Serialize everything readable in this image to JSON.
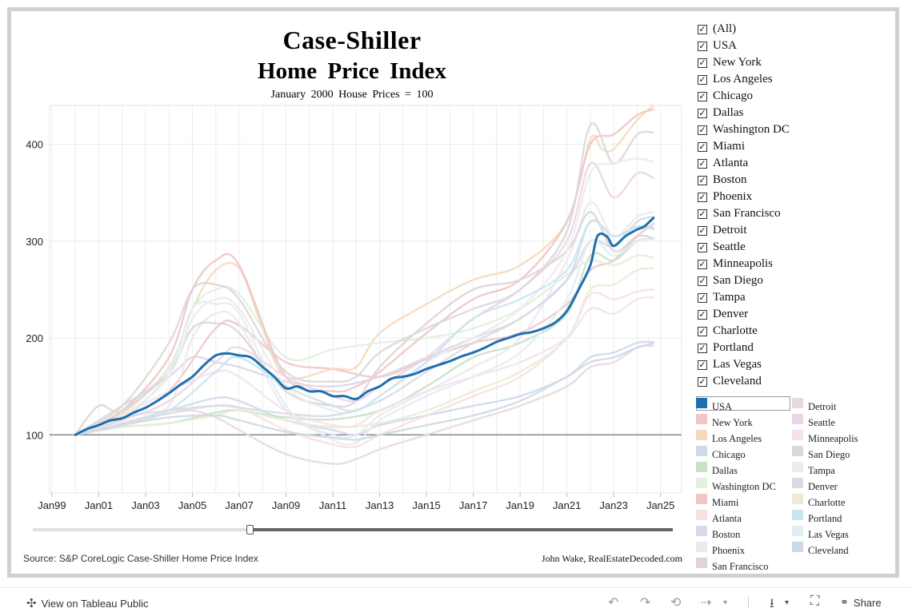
{
  "header": {
    "title_line1": "Case-Shiller",
    "title_line2": "Home Price Index",
    "subtitle": "January 2000 House Prices = 100"
  },
  "footer": {
    "source": "Source: S&P CoreLogic Case-Shiller Home Price Index",
    "credit": "John Wake, RealEstateDecoded.com"
  },
  "filter": {
    "items": [
      "(All)",
      "USA",
      "New York",
      "Los Angeles",
      "Chicago",
      "Dallas",
      "Washington DC",
      "Miami",
      "Atlanta",
      "Boston",
      "Phoenix",
      "San Francisco",
      "Detroit",
      "Seattle",
      "Minneapolis",
      "San Diego",
      "Tampa",
      "Denver",
      "Charlotte",
      "Portland",
      "Las Vegas",
      "Cleveland"
    ],
    "check_glyph": "✓"
  },
  "legend": {
    "items": [
      {
        "label": "USA",
        "color": "#1f6fb0"
      },
      {
        "label": "New York",
        "color": "#f2c6c6"
      },
      {
        "label": "Los Angeles",
        "color": "#f5d9bc"
      },
      {
        "label": "Chicago",
        "color": "#cfdae8"
      },
      {
        "label": "Dallas",
        "color": "#c7e2c4"
      },
      {
        "label": "Washington DC",
        "color": "#e2f0dd"
      },
      {
        "label": "Miami",
        "color": "#efc5c5"
      },
      {
        "label": "Atlanta",
        "color": "#f8e0e0"
      },
      {
        "label": "Boston",
        "color": "#dcd6e8"
      },
      {
        "label": "Phoenix",
        "color": "#ebe8f1"
      },
      {
        "label": "San Francisco",
        "color": "#e0d4d4"
      },
      {
        "label": "Detroit",
        "color": "#ead8dc"
      },
      {
        "label": "Seattle",
        "color": "#ecd5e6"
      },
      {
        "label": "Minneapolis",
        "color": "#f4e2ec"
      },
      {
        "label": "San Diego",
        "color": "#d9d9d9"
      },
      {
        "label": "Tampa",
        "color": "#ececec"
      },
      {
        "label": "Denver",
        "color": "#d6dbe6"
      },
      {
        "label": "Charlotte",
        "color": "#ebebd8"
      },
      {
        "label": "Portland",
        "color": "#c9e6ee"
      },
      {
        "label": "Las Vegas",
        "color": "#e1eef2"
      },
      {
        "label": "Cleveland",
        "color": "#cdd9e6"
      }
    ]
  },
  "toolbar": {
    "view_label": "View on Tableau Public",
    "share_label": "Share",
    "tableau_icon": "✣",
    "undo_icon": "↶",
    "redo_icon": "↷",
    "revert_icon": "⟲",
    "refresh_icon": "⇢",
    "download_icon": "⭳",
    "fullscreen_icon": "⛶",
    "share_icon": "⚭"
  },
  "chart_data": {
    "type": "line",
    "title": "Case-Shiller Home Price Index",
    "subtitle": "January 2000 House Prices = 100",
    "xlabel": "",
    "ylabel": "",
    "x_ticks": [
      "Jan99",
      "Jan01",
      "Jan03",
      "Jan05",
      "Jan07",
      "Jan09",
      "Jan11",
      "Jan13",
      "Jan15",
      "Jan17",
      "Jan19",
      "Jan21",
      "Jan23",
      "Jan25"
    ],
    "y_ticks": [
      100,
      200,
      300,
      400
    ],
    "xlim": [
      1998.9,
      2025.9
    ],
    "ylim": [
      40,
      440
    ],
    "reference_line": 100,
    "series": [
      {
        "name": "New York",
        "color": "#f2c6c6",
        "x": [
          2000,
          2002,
          2004,
          2006,
          2007,
          2009,
          2011,
          2013,
          2015,
          2017,
          2019,
          2021,
          2022,
          2023,
          2024,
          2024.7
        ],
        "values": [
          100,
          117,
          145,
          210,
          213,
          175,
          168,
          160,
          178,
          195,
          205,
          235,
          270,
          280,
          305,
          318
        ]
      },
      {
        "name": "Los Angeles",
        "color": "#f5d9bc",
        "x": [
          2000,
          2002,
          2004,
          2005,
          2006,
          2007,
          2008,
          2009,
          2011,
          2012,
          2013,
          2015,
          2017,
          2019,
          2021,
          2022,
          2022.5,
          2023,
          2024,
          2024.7
        ],
        "values": [
          100,
          122,
          170,
          230,
          270,
          272,
          210,
          160,
          168,
          170,
          205,
          235,
          260,
          275,
          320,
          405,
          395,
          395,
          425,
          440
        ]
      },
      {
        "name": "Chicago",
        "color": "#cfdae8",
        "x": [
          2000,
          2002,
          2004,
          2006,
          2007,
          2009,
          2011,
          2012,
          2013,
          2015,
          2017,
          2019,
          2021,
          2022,
          2023,
          2024,
          2024.7
        ],
        "values": [
          100,
          112,
          125,
          138,
          135,
          115,
          105,
          100,
          110,
          120,
          130,
          140,
          160,
          180,
          185,
          195,
          196
        ]
      },
      {
        "name": "Dallas",
        "color": "#c7e2c4",
        "x": [
          2000,
          2002,
          2004,
          2006,
          2007,
          2009,
          2011,
          2013,
          2015,
          2017,
          2019,
          2021,
          2022,
          2023,
          2024,
          2024.7
        ],
        "values": [
          100,
          108,
          112,
          123,
          125,
          118,
          116,
          125,
          150,
          180,
          195,
          225,
          285,
          280,
          300,
          302
        ]
      },
      {
        "name": "Washington DC",
        "color": "#e2f0dd",
        "x": [
          2000,
          2002,
          2004,
          2005,
          2006,
          2007,
          2009,
          2011,
          2013,
          2015,
          2017,
          2019,
          2021,
          2022,
          2023,
          2024,
          2024.7
        ],
        "values": [
          100,
          125,
          170,
          230,
          250,
          245,
          180,
          188,
          195,
          200,
          210,
          230,
          265,
          280,
          275,
          285,
          283
        ]
      },
      {
        "name": "Miami",
        "color": "#efc5c5",
        "x": [
          2000,
          2002,
          2004,
          2005,
          2006,
          2007,
          2009,
          2011,
          2012,
          2013,
          2015,
          2017,
          2019,
          2021,
          2022,
          2023,
          2024,
          2024.7
        ],
        "values": [
          100,
          125,
          180,
          250,
          280,
          275,
          160,
          145,
          150,
          165,
          205,
          240,
          260,
          320,
          400,
          410,
          430,
          436
        ]
      },
      {
        "name": "Atlanta",
        "color": "#f8e0e0",
        "x": [
          2000,
          2002,
          2004,
          2006,
          2007,
          2009,
          2011,
          2012,
          2013,
          2015,
          2017,
          2019,
          2021,
          2022,
          2023,
          2024,
          2024.7
        ],
        "values": [
          100,
          112,
          122,
          130,
          128,
          105,
          90,
          88,
          100,
          120,
          140,
          160,
          200,
          245,
          240,
          248,
          250
        ]
      },
      {
        "name": "Boston",
        "color": "#dcd6e8",
        "x": [
          2000,
          2002,
          2004,
          2005,
          2006,
          2007,
          2009,
          2011,
          2013,
          2015,
          2017,
          2019,
          2021,
          2022,
          2023,
          2024,
          2024.7
        ],
        "values": [
          100,
          130,
          160,
          180,
          175,
          170,
          155,
          150,
          160,
          180,
          200,
          220,
          260,
          300,
          295,
          320,
          325
        ]
      },
      {
        "name": "Phoenix",
        "color": "#ebe8f1",
        "x": [
          2000,
          2002,
          2004,
          2005,
          2006,
          2007,
          2009,
          2011,
          2012,
          2013,
          2015,
          2017,
          2019,
          2021,
          2022,
          2023,
          2024,
          2024.7
        ],
        "values": [
          100,
          110,
          130,
          200,
          225,
          215,
          125,
          100,
          100,
          120,
          145,
          170,
          200,
          280,
          340,
          305,
          325,
          330
        ]
      },
      {
        "name": "San Francisco",
        "color": "#e0d4d4",
        "x": [
          2000,
          2001,
          2002,
          2004,
          2005,
          2006,
          2007,
          2009,
          2011,
          2012,
          2013,
          2015,
          2017,
          2019,
          2021,
          2022,
          2023,
          2024,
          2024.7
        ],
        "values": [
          100,
          130,
          125,
          165,
          210,
          215,
          205,
          145,
          130,
          135,
          170,
          215,
          250,
          260,
          290,
          330,
          290,
          305,
          303
        ]
      },
      {
        "name": "Detroit",
        "color": "#ead8dc",
        "x": [
          2000,
          2002,
          2004,
          2005,
          2006,
          2007,
          2009,
          2011,
          2012,
          2013,
          2015,
          2017,
          2019,
          2021,
          2022,
          2023,
          2024,
          2024.7
        ],
        "values": [
          100,
          112,
          122,
          125,
          118,
          105,
          80,
          70,
          75,
          85,
          100,
          115,
          130,
          150,
          170,
          175,
          190,
          192
        ]
      },
      {
        "name": "Seattle",
        "color": "#ecd5e6",
        "x": [
          2000,
          2002,
          2004,
          2006,
          2007,
          2009,
          2011,
          2012,
          2013,
          2015,
          2017,
          2019,
          2021,
          2022,
          2023,
          2024,
          2024.7
        ],
        "values": [
          100,
          115,
          135,
          175,
          190,
          160,
          140,
          135,
          150,
          180,
          220,
          250,
          300,
          380,
          345,
          370,
          365
        ]
      },
      {
        "name": "Minneapolis",
        "color": "#f4e2ec",
        "x": [
          2000,
          2002,
          2004,
          2006,
          2007,
          2009,
          2011,
          2012,
          2013,
          2015,
          2017,
          2019,
          2021,
          2022,
          2023,
          2024,
          2024.7
        ],
        "values": [
          100,
          120,
          145,
          165,
          160,
          125,
          110,
          110,
          125,
          145,
          160,
          175,
          200,
          230,
          225,
          240,
          242
        ]
      },
      {
        "name": "San Diego",
        "color": "#d9d9d9",
        "x": [
          2000,
          2002,
          2004,
          2005,
          2006,
          2007,
          2009,
          2011,
          2012,
          2013,
          2015,
          2017,
          2019,
          2021,
          2022,
          2023,
          2024,
          2024.7
        ],
        "values": [
          100,
          130,
          195,
          250,
          255,
          240,
          165,
          155,
          160,
          185,
          210,
          230,
          250,
          310,
          420,
          380,
          410,
          412
        ]
      },
      {
        "name": "Tampa",
        "color": "#ececec",
        "x": [
          2000,
          2002,
          2004,
          2005,
          2006,
          2007,
          2009,
          2011,
          2012,
          2013,
          2015,
          2017,
          2019,
          2021,
          2022,
          2023,
          2024,
          2024.7
        ],
        "values": [
          100,
          120,
          160,
          220,
          240,
          230,
          150,
          125,
          125,
          140,
          175,
          200,
          230,
          290,
          370,
          380,
          385,
          382
        ]
      },
      {
        "name": "Denver",
        "color": "#d6dbe6",
        "x": [
          2000,
          2002,
          2004,
          2006,
          2007,
          2009,
          2011,
          2013,
          2015,
          2017,
          2019,
          2021,
          2022,
          2023,
          2024,
          2024.7
        ],
        "values": [
          100,
          118,
          125,
          130,
          128,
          122,
          120,
          135,
          165,
          195,
          220,
          260,
          320,
          305,
          315,
          314
        ]
      },
      {
        "name": "Charlotte",
        "color": "#ebebd8",
        "x": [
          2000,
          2002,
          2004,
          2006,
          2007,
          2009,
          2011,
          2013,
          2015,
          2017,
          2019,
          2021,
          2022,
          2023,
          2024,
          2024.7
        ],
        "values": [
          100,
          108,
          112,
          120,
          125,
          115,
          108,
          112,
          125,
          145,
          165,
          200,
          250,
          255,
          270,
          272
        ]
      },
      {
        "name": "Portland",
        "color": "#c9e6ee",
        "x": [
          2000,
          2002,
          2004,
          2006,
          2007,
          2009,
          2011,
          2012,
          2013,
          2015,
          2017,
          2019,
          2021,
          2022,
          2023,
          2024,
          2024.7
        ],
        "values": [
          100,
          110,
          125,
          165,
          180,
          150,
          130,
          125,
          140,
          175,
          220,
          240,
          270,
          320,
          305,
          315,
          312
        ]
      },
      {
        "name": "Las Vegas",
        "color": "#e1eef2",
        "x": [
          2000,
          2002,
          2004,
          2005,
          2006,
          2007,
          2009,
          2011,
          2012,
          2013,
          2015,
          2017,
          2019,
          2021,
          2022,
          2023,
          2024,
          2024.7
        ],
        "values": [
          100,
          115,
          165,
          230,
          235,
          225,
          130,
          95,
          92,
          115,
          140,
          160,
          185,
          240,
          300,
          285,
          300,
          302
        ]
      },
      {
        "name": "Cleveland",
        "color": "#cdd9e6",
        "x": [
          2000,
          2002,
          2004,
          2006,
          2007,
          2009,
          2011,
          2012,
          2013,
          2015,
          2017,
          2019,
          2021,
          2022,
          2023,
          2024,
          2024.7
        ],
        "values": [
          100,
          110,
          118,
          120,
          115,
          103,
          97,
          95,
          100,
          110,
          120,
          135,
          160,
          175,
          180,
          190,
          195
        ]
      },
      {
        "name": "USA",
        "color": "#1f6fb0",
        "x": [
          2000,
          2000.5,
          2001,
          2001.5,
          2002,
          2002.5,
          2003,
          2003.5,
          2004,
          2004.5,
          2005,
          2005.5,
          2006,
          2006.5,
          2007,
          2007.5,
          2008,
          2008.5,
          2009,
          2009.5,
          2010,
          2010.5,
          2011,
          2011.5,
          2012,
          2012.5,
          2013,
          2013.5,
          2014,
          2014.5,
          2015,
          2015.5,
          2016,
          2016.5,
          2017,
          2017.5,
          2018,
          2018.5,
          2019,
          2019.5,
          2020,
          2020.5,
          2021,
          2021.5,
          2022,
          2022.3,
          2022.7,
          2023,
          2023.5,
          2024,
          2024.3,
          2024.7
        ],
        "values": [
          100,
          106,
          110,
          115,
          117,
          123,
          128,
          135,
          143,
          152,
          160,
          172,
          182,
          184,
          182,
          180,
          170,
          160,
          148,
          150,
          145,
          145,
          140,
          140,
          137,
          145,
          150,
          158,
          160,
          163,
          168,
          172,
          176,
          181,
          185,
          190,
          196,
          200,
          204,
          206,
          210,
          216,
          228,
          250,
          275,
          305,
          305,
          295,
          305,
          312,
          315,
          324
        ]
      }
    ]
  }
}
